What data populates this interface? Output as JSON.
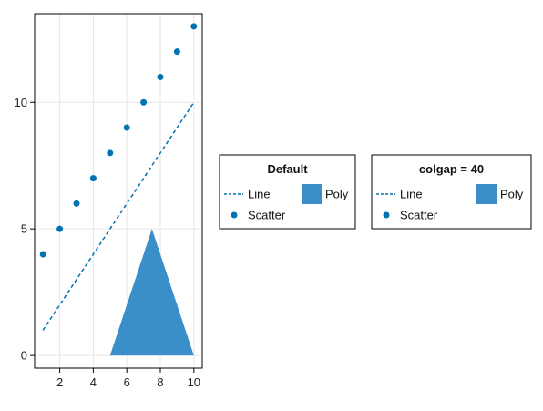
{
  "chart_data": {
    "type": "line",
    "title": "",
    "xlabel": "",
    "ylabel": "",
    "xlim": [
      0.5,
      10.5
    ],
    "ylim": [
      -0.5,
      13.5
    ],
    "xticks": [
      2,
      4,
      6,
      8,
      10
    ],
    "yticks": [
      0,
      5,
      10
    ],
    "grid": true,
    "series": [
      {
        "name": "Line",
        "type": "line",
        "style": "dashed",
        "color": "#0072B2",
        "x": [
          1,
          10
        ],
        "y": [
          1,
          10
        ]
      },
      {
        "name": "Scatter",
        "type": "scatter",
        "color": "#0072B2",
        "x": [
          1,
          2,
          3,
          4,
          5,
          6,
          7,
          8,
          9,
          10
        ],
        "y": [
          4,
          5,
          6,
          7,
          8,
          9,
          10,
          11,
          12,
          13
        ]
      },
      {
        "name": "Poly",
        "type": "polygon",
        "color": "#3A8FC8",
        "x": [
          5,
          10,
          7.5
        ],
        "y": [
          0,
          0,
          5
        ]
      }
    ],
    "legends": [
      {
        "title": "Default",
        "entries": [
          {
            "label": "Line",
            "kind": "line"
          },
          {
            "label": "Poly",
            "kind": "poly"
          },
          {
            "label": "Scatter",
            "kind": "scatter"
          }
        ]
      },
      {
        "title": "colgap = 40",
        "entries": [
          {
            "label": "Line",
            "kind": "line"
          },
          {
            "label": "Poly",
            "kind": "poly"
          },
          {
            "label": "Scatter",
            "kind": "scatter"
          }
        ]
      }
    ]
  }
}
